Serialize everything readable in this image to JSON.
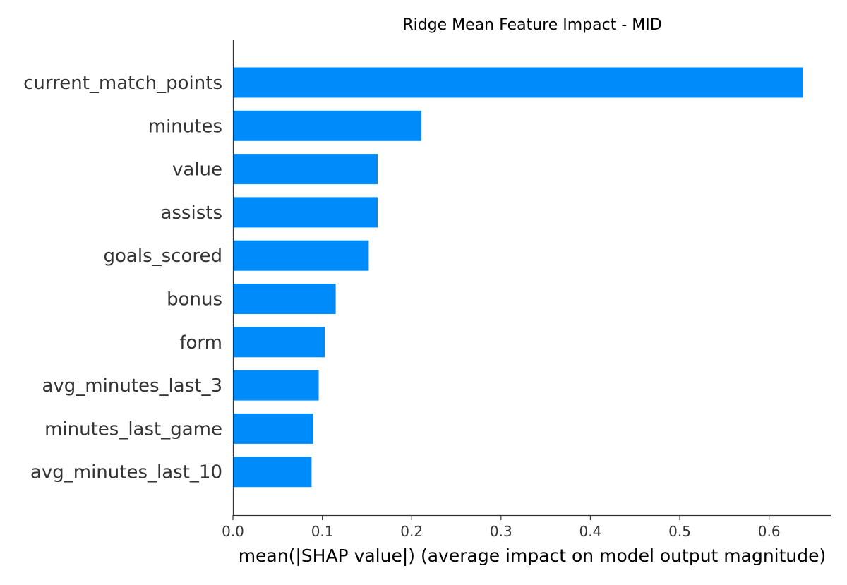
{
  "chart_data": {
    "type": "bar",
    "orientation": "horizontal",
    "title": "Ridge Mean Feature Impact - MID",
    "xlabel": "mean(|SHAP value|) (average impact on model output magnitude)",
    "ylabel": "",
    "categories": [
      "current_match_points",
      "minutes",
      "value",
      "assists",
      "goals_scored",
      "bonus",
      "form",
      "avg_minutes_last_3",
      "minutes_last_game",
      "avg_minutes_last_10"
    ],
    "values": [
      0.638,
      0.211,
      0.162,
      0.162,
      0.152,
      0.115,
      0.103,
      0.096,
      0.09,
      0.088
    ],
    "xlim": [
      0,
      0.669
    ],
    "xticks": [
      0.0,
      0.1,
      0.2,
      0.3,
      0.4,
      0.5,
      0.6
    ],
    "xtick_labels": [
      "0.0",
      "0.1",
      "0.2",
      "0.3",
      "0.4",
      "0.5",
      "0.6"
    ],
    "bar_color": "#008bfb",
    "grid": false,
    "legend": "none"
  },
  "colors": {
    "axis": "#333333",
    "text": "#333333",
    "title": "#000000"
  }
}
